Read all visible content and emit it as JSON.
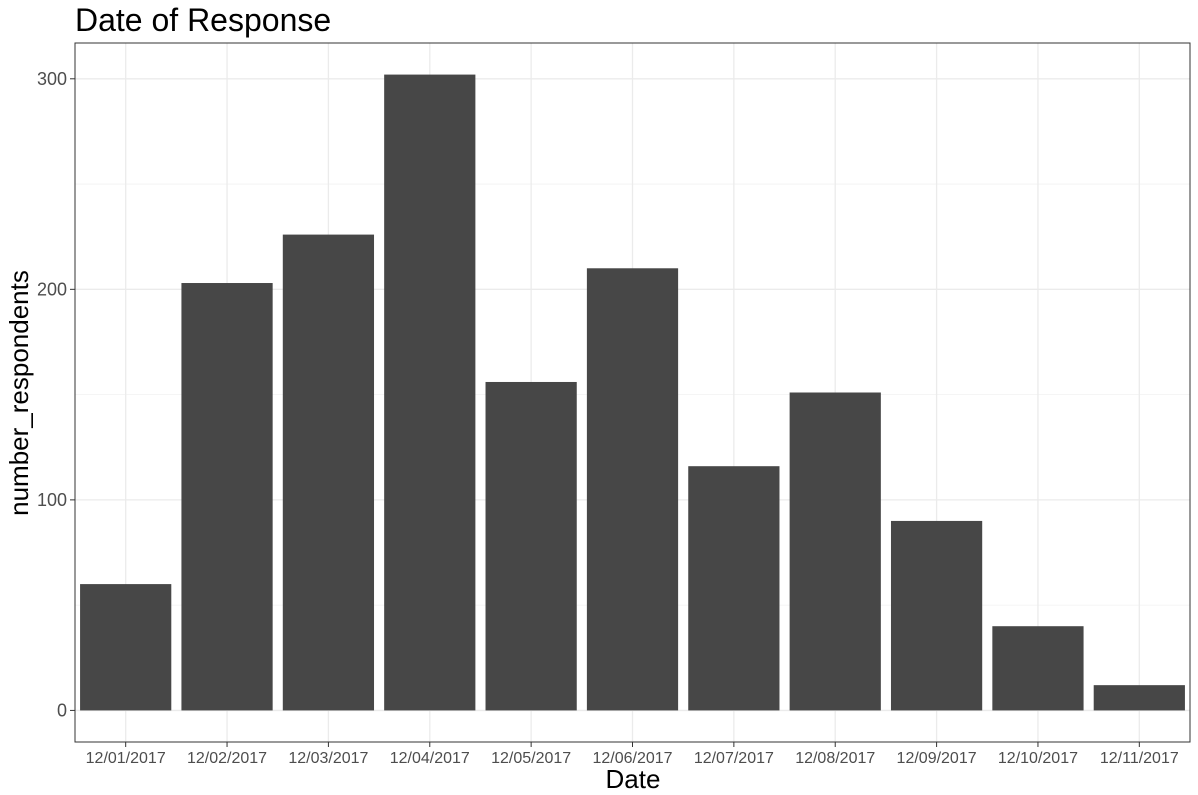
{
  "chart_data": {
    "type": "bar",
    "title": "Date of Response",
    "xlabel": "Date",
    "ylabel": "number_respondents",
    "categories": [
      "12/01/2017",
      "12/02/2017",
      "12/03/2017",
      "12/04/2017",
      "12/05/2017",
      "12/06/2017",
      "12/07/2017",
      "12/08/2017",
      "12/09/2017",
      "12/10/2017",
      "12/11/2017"
    ],
    "values": [
      60,
      203,
      226,
      302,
      156,
      210,
      116,
      151,
      90,
      40,
      12
    ],
    "ylim": [
      -15,
      317
    ],
    "yticks": [
      0,
      100,
      200,
      300
    ],
    "yticks_minor": [
      50,
      150,
      250
    ],
    "bar_color": "#474747",
    "grid": true,
    "legend": "none"
  }
}
